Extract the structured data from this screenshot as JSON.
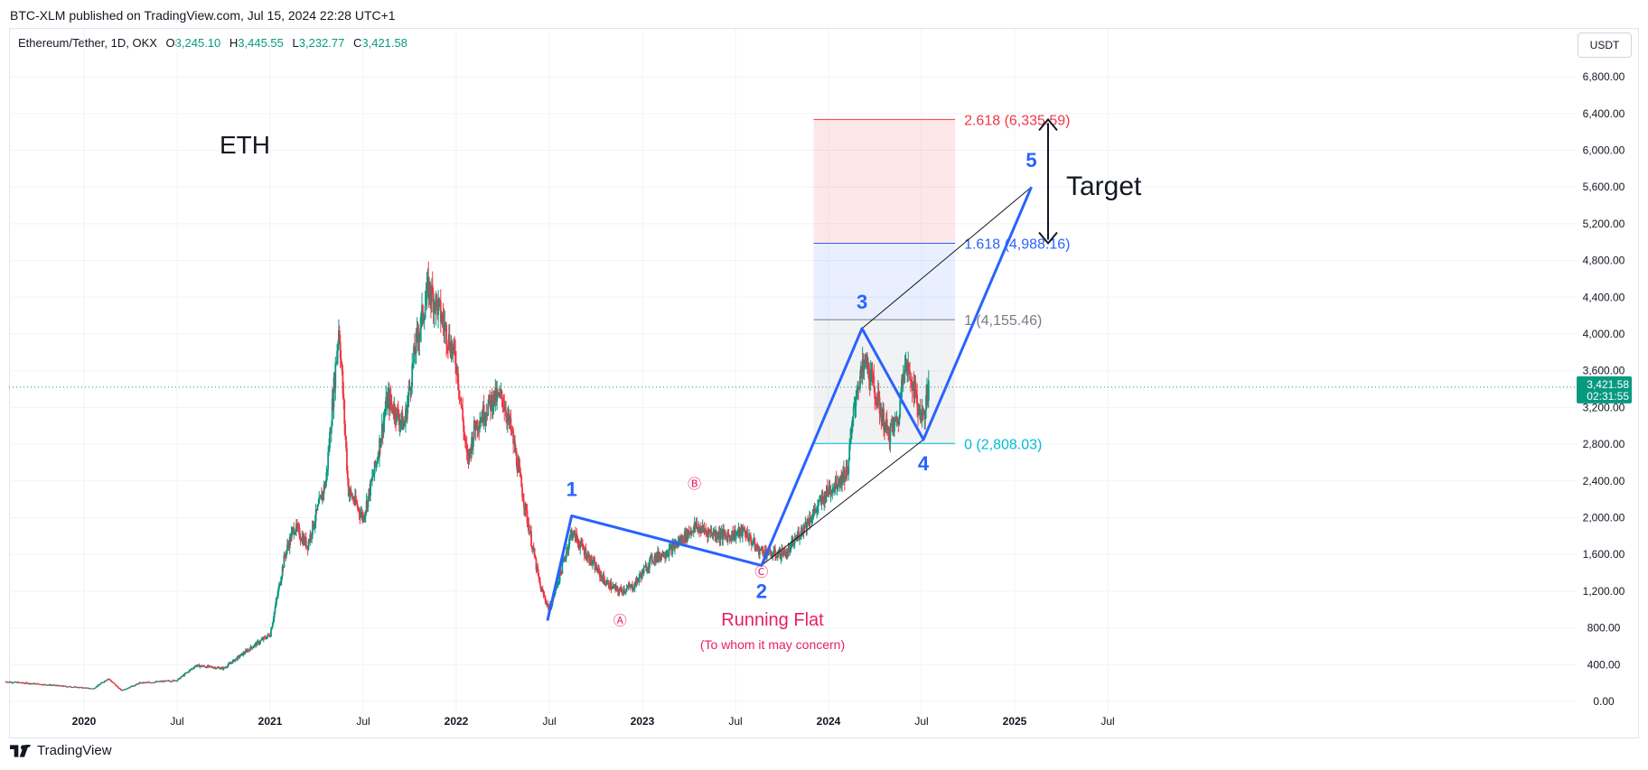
{
  "header": {
    "publish_line": "BTC-XLM published on TradingView.com, Jul 15, 2024 22:28 UTC+1",
    "symbol": "Ethereum/Tether, 1D, OKX",
    "open_label": "O",
    "open": "3,245.10",
    "high_label": "H",
    "high": "3,445.55",
    "low_label": "L",
    "low": "3,232.77",
    "close_label": "C",
    "close": "3,421.58",
    "currency": "USDT"
  },
  "footer": {
    "brand": "TradingView"
  },
  "colors": {
    "bull": "#089981",
    "bear": "#f23645",
    "wave": "#2962ff",
    "fib_red": "#f23645",
    "fib_blue": "#2962ff",
    "fib_gray": "#787b86",
    "fib_teal": "#00bcd4",
    "abc": "#e91e63"
  },
  "chart_data": {
    "type": "candlestick",
    "title": "ETH",
    "ylabel": "USDT",
    "ylim": [
      0,
      7100
    ],
    "y_ticks": [
      "0.00",
      "400.00",
      "800.00",
      "1,200.00",
      "1,600.00",
      "2,000.00",
      "2,400.00",
      "2,800.00",
      "3,200.00",
      "3,600.00",
      "4,000.00",
      "4,400.00",
      "4,800.00",
      "5,200.00",
      "5,600.00",
      "6,000.00",
      "6,400.00",
      "6,800.00"
    ],
    "y_tick_values": [
      0,
      400,
      800,
      1200,
      1600,
      2000,
      2400,
      2800,
      3200,
      3600,
      4000,
      4400,
      4800,
      5200,
      5600,
      6000,
      6400,
      6800
    ],
    "x_ticks": [
      {
        "label": "2020",
        "t": 2020.0,
        "bold": true
      },
      {
        "label": "Jul",
        "t": 2020.5,
        "bold": false
      },
      {
        "label": "2021",
        "t": 2021.0,
        "bold": true
      },
      {
        "label": "Jul",
        "t": 2021.5,
        "bold": false
      },
      {
        "label": "2022",
        "t": 2022.0,
        "bold": true
      },
      {
        "label": "Jul",
        "t": 2022.5,
        "bold": false
      },
      {
        "label": "2023",
        "t": 2023.0,
        "bold": true
      },
      {
        "label": "Jul",
        "t": 2023.5,
        "bold": false
      },
      {
        "label": "2024",
        "t": 2024.0,
        "bold": true
      },
      {
        "label": "Jul",
        "t": 2024.5,
        "bold": false
      },
      {
        "label": "2025",
        "t": 2025.0,
        "bold": true
      },
      {
        "label": "Jul",
        "t": 2025.5,
        "bold": false
      }
    ],
    "time_range": [
      2019.58,
      2025.9
    ],
    "price_anchors": [
      [
        2019.58,
        215
      ],
      [
        2019.75,
        190
      ],
      [
        2019.9,
        165
      ],
      [
        2020.05,
        140
      ],
      [
        2020.13,
        250
      ],
      [
        2020.2,
        120
      ],
      [
        2020.3,
        200
      ],
      [
        2020.5,
        230
      ],
      [
        2020.6,
        390
      ],
      [
        2020.75,
        360
      ],
      [
        2020.9,
        590
      ],
      [
        2021.0,
        730
      ],
      [
        2021.08,
        1600
      ],
      [
        2021.13,
        1900
      ],
      [
        2021.2,
        1700
      ],
      [
        2021.3,
        2400
      ],
      [
        2021.37,
        4100
      ],
      [
        2021.42,
        2300
      ],
      [
        2021.5,
        2000
      ],
      [
        2021.57,
        2600
      ],
      [
        2021.63,
        3300
      ],
      [
        2021.72,
        3000
      ],
      [
        2021.78,
        3850
      ],
      [
        2021.85,
        4500
      ],
      [
        2021.9,
        4300
      ],
      [
        2022.0,
        3700
      ],
      [
        2022.06,
        2600
      ],
      [
        2022.1,
        3000
      ],
      [
        2022.2,
        3300
      ],
      [
        2022.25,
        3300
      ],
      [
        2022.3,
        2900
      ],
      [
        2022.38,
        2000
      ],
      [
        2022.45,
        1250
      ],
      [
        2022.5,
        1000
      ],
      [
        2022.56,
        1400
      ],
      [
        2022.62,
        1850
      ],
      [
        2022.7,
        1600
      ],
      [
        2022.8,
        1300
      ],
      [
        2022.87,
        1200
      ],
      [
        2022.95,
        1250
      ],
      [
        2023.05,
        1550
      ],
      [
        2023.15,
        1650
      ],
      [
        2023.28,
        1900
      ],
      [
        2023.35,
        1850
      ],
      [
        2023.45,
        1800
      ],
      [
        2023.55,
        1850
      ],
      [
        2023.62,
        1650
      ],
      [
        2023.7,
        1600
      ],
      [
        2023.78,
        1620
      ],
      [
        2023.85,
        1850
      ],
      [
        2023.92,
        2050
      ],
      [
        2024.0,
        2300
      ],
      [
        2024.1,
        2500
      ],
      [
        2024.15,
        3400
      ],
      [
        2024.2,
        3700
      ],
      [
        2024.26,
        3300
      ],
      [
        2024.32,
        2900
      ],
      [
        2024.38,
        3100
      ],
      [
        2024.4,
        3700
      ],
      [
        2024.45,
        3500
      ],
      [
        2024.48,
        3200
      ],
      [
        2024.51,
        3100
      ],
      [
        2024.54,
        3420
      ]
    ],
    "wave_labels": [
      {
        "label": "1",
        "t": 2022.62,
        "price": 2020
      },
      {
        "label": "2",
        "t": 2023.64,
        "price": 1480
      },
      {
        "label": "3",
        "t": 2024.18,
        "price": 4060
      },
      {
        "label": "4",
        "t": 2024.51,
        "price": 2850
      },
      {
        "label": "5",
        "t": 2025.09,
        "price": 5600
      }
    ],
    "abc_labels": [
      {
        "label": "Ⓐ",
        "t": 2022.88,
        "price": 830
      },
      {
        "label": "Ⓑ",
        "t": 2023.28,
        "price": 2320
      },
      {
        "label": "Ⓒ",
        "t": 2023.64,
        "price": 1360
      }
    ],
    "trendline": [
      [
        2023.64,
        1480
      ],
      [
        2024.51,
        2850
      ]
    ],
    "channel_line": [
      [
        2024.18,
        4060
      ],
      [
        2025.09,
        5600
      ]
    ],
    "fib_levels": [
      {
        "ratio": "2.618",
        "price": 6335.59,
        "label": "2.618 (6,335.59)",
        "color": "#f23645"
      },
      {
        "ratio": "1.618",
        "price": 4988.16,
        "label": "1.618 (4,988.16)",
        "color": "#2962ff"
      },
      {
        "ratio": "1",
        "price": 4155.46,
        "label": "1 (4,155.46)",
        "color": "#787b86"
      },
      {
        "ratio": "0",
        "price": 2808.03,
        "label": "0 (2,808.03)",
        "color": "#00bcd4"
      }
    ],
    "fib_range_t": [
      2023.92,
      2024.68
    ],
    "target_label": "Target",
    "target_range": [
      4988.16,
      6335.59
    ],
    "pattern_label": "Running Flat",
    "pattern_sublabel": "(To whom it may concern)",
    "last_price": "3,421.58",
    "last_price_value": 3421.58,
    "countdown": "02:31:55"
  }
}
